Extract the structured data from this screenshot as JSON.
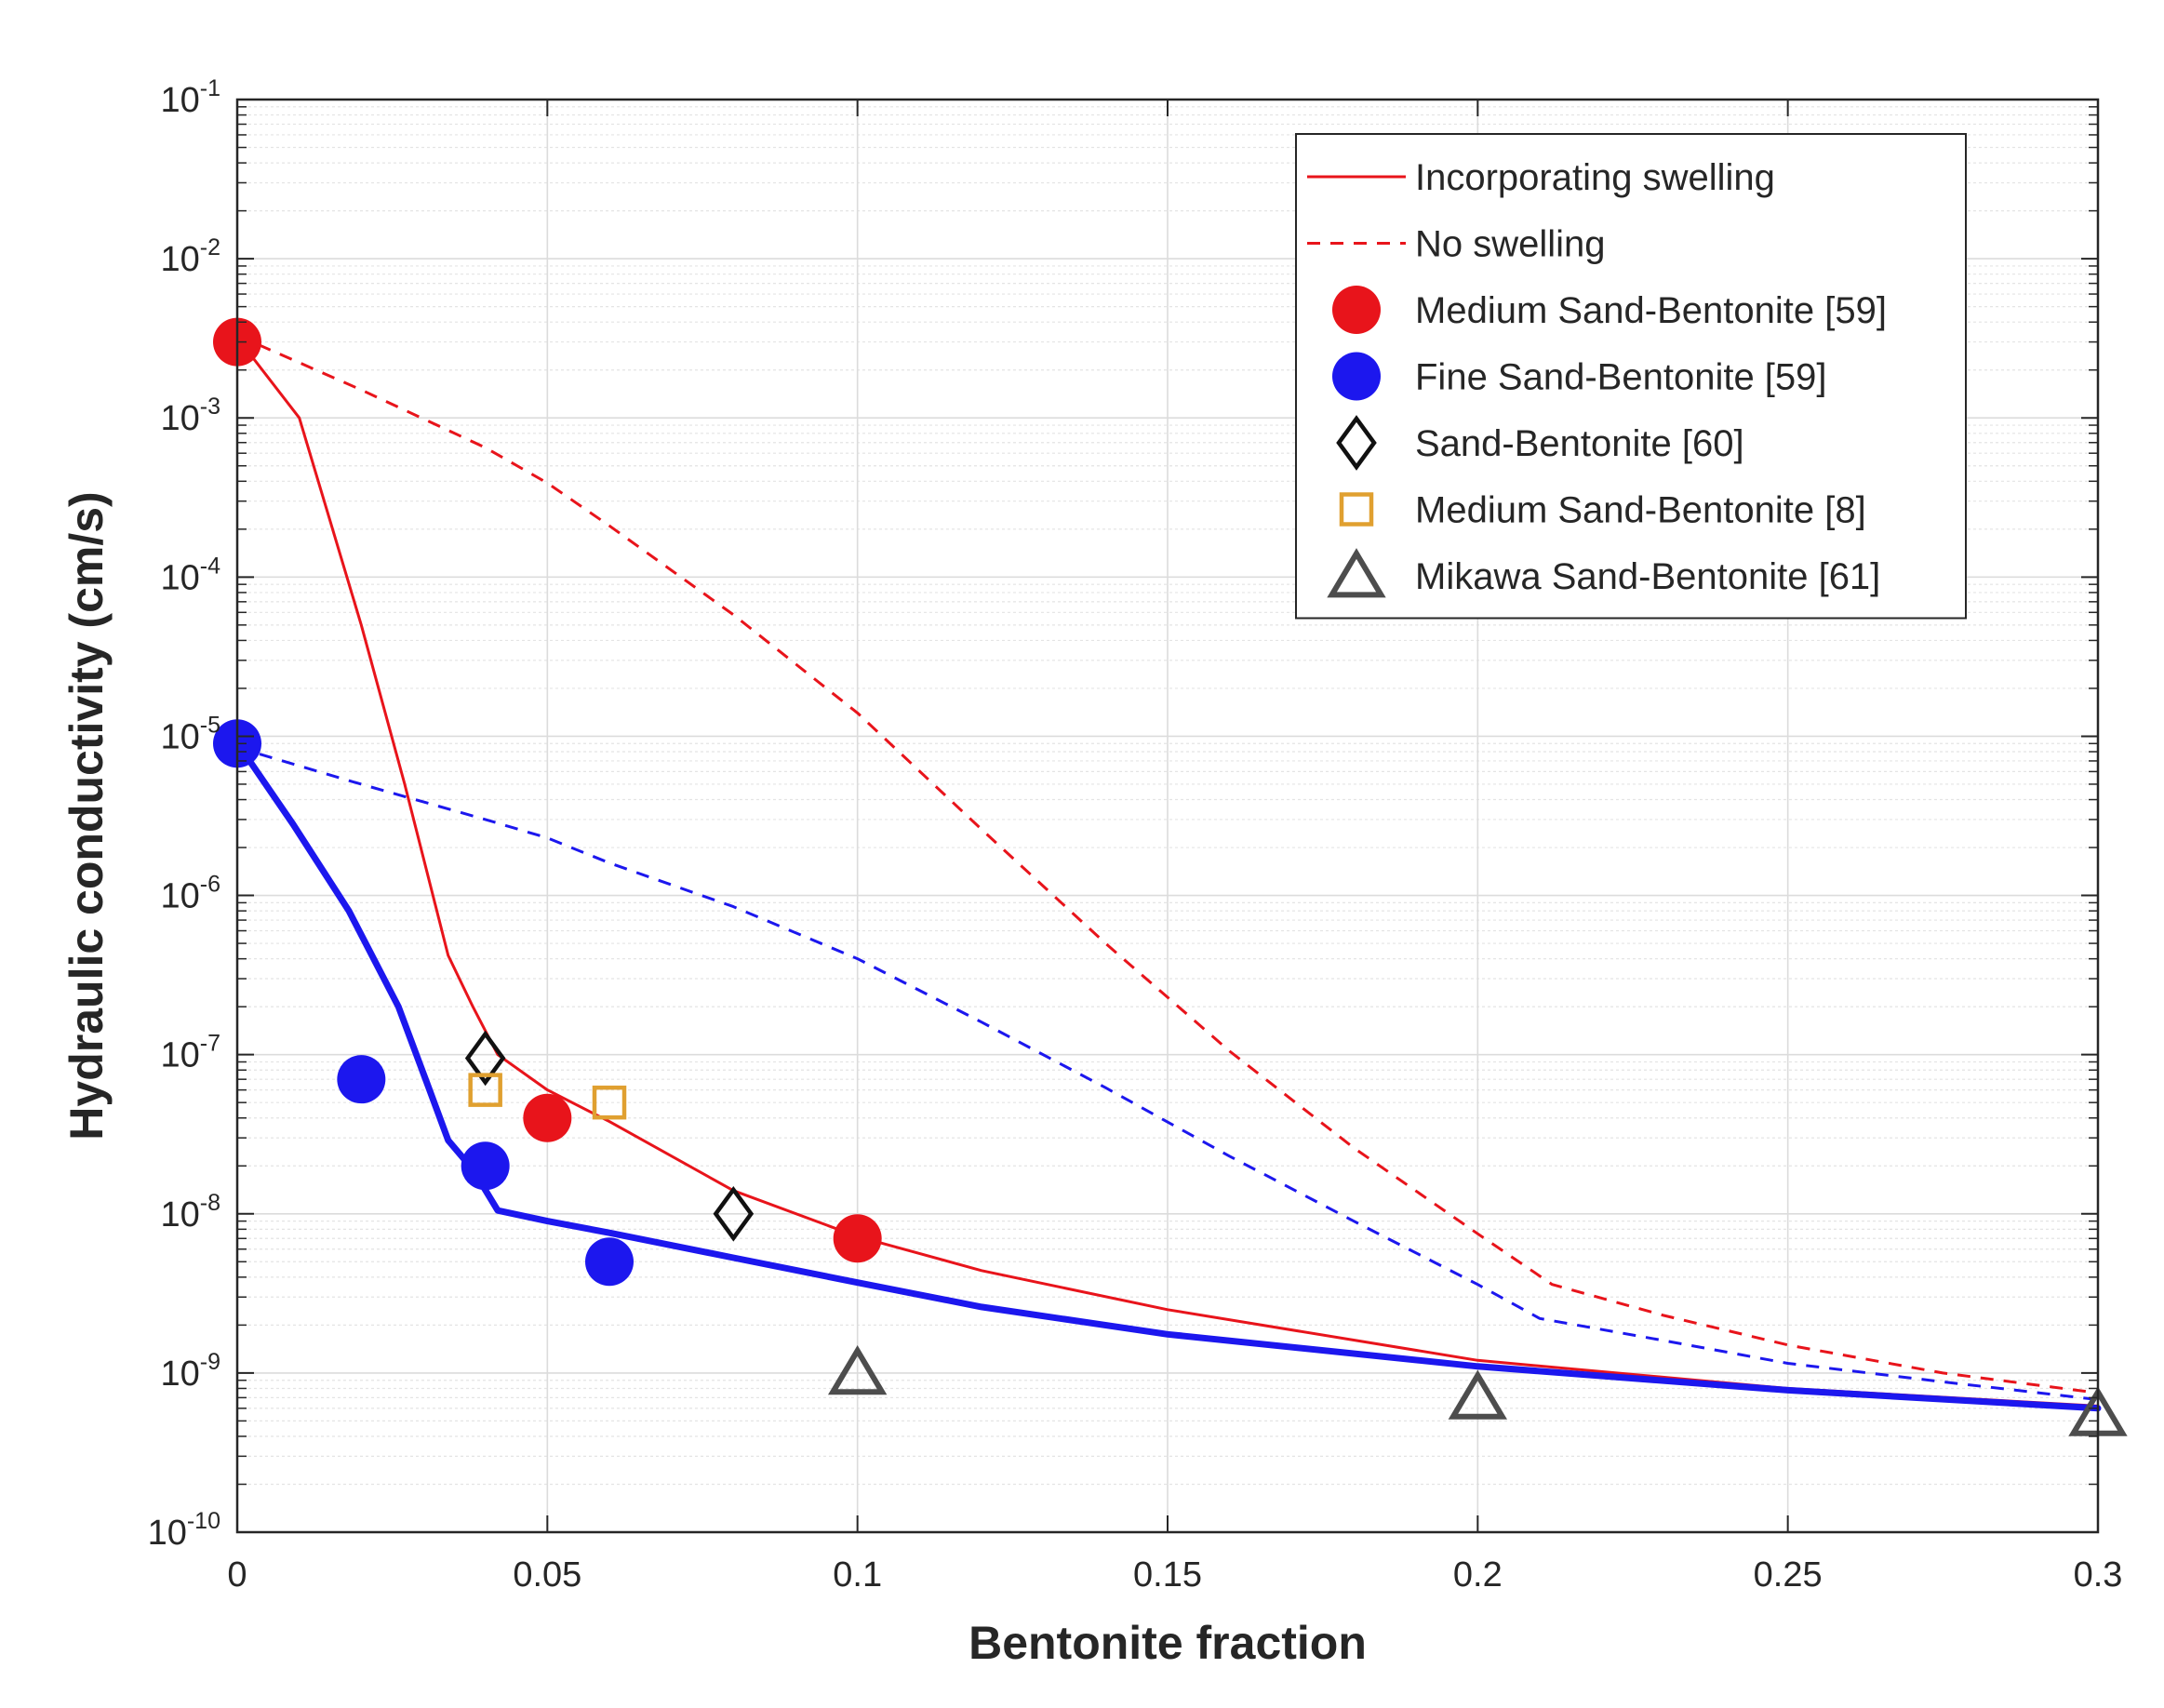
{
  "chart_data": {
    "type": "scatter",
    "title": "",
    "xlabel": "Bentonite fraction",
    "ylabel": "Hydraulic conductivity (cm/s)",
    "x_scale": "linear",
    "y_scale": "log",
    "xlim": [
      0,
      0.3
    ],
    "ylim": [
      1e-10,
      0.1
    ],
    "grid": true,
    "minor_grid": true,
    "legend_position": "top-right",
    "x_ticks": [
      {
        "value": 0,
        "label": "0"
      },
      {
        "value": 0.05,
        "label": "0.05"
      },
      {
        "value": 0.1,
        "label": "0.1"
      },
      {
        "value": 0.15,
        "label": "0.15"
      },
      {
        "value": 0.2,
        "label": "0.2"
      },
      {
        "value": 0.25,
        "label": "0.25"
      },
      {
        "value": 0.3,
        "label": "0.3"
      }
    ],
    "y_ticks": [
      {
        "exp": -10,
        "base": "10",
        "sup": "-10"
      },
      {
        "exp": -9,
        "base": "10",
        "sup": "-9"
      },
      {
        "exp": -8,
        "base": "10",
        "sup": "-8"
      },
      {
        "exp": -7,
        "base": "10",
        "sup": "-7"
      },
      {
        "exp": -6,
        "base": "10",
        "sup": "-6"
      },
      {
        "exp": -5,
        "base": "10",
        "sup": "-5"
      },
      {
        "exp": -4,
        "base": "10",
        "sup": "-4"
      },
      {
        "exp": -3,
        "base": "10",
        "sup": "-3"
      },
      {
        "exp": -2,
        "base": "10",
        "sup": "-2"
      },
      {
        "exp": -1,
        "base": "10",
        "sup": "-1"
      }
    ],
    "lines": [
      {
        "name": "medium-swelling",
        "color": "#e8141b",
        "style": "solid",
        "weight": "thin",
        "points": [
          [
            0,
            0.0032
          ],
          [
            0.01,
            0.001
          ],
          [
            0.02,
            5e-05
          ],
          [
            0.027,
            5e-06
          ],
          [
            0.034,
            4.2e-07
          ],
          [
            0.038,
            2e-07
          ],
          [
            0.042,
            1e-07
          ],
          [
            0.05,
            6e-08
          ],
          [
            0.06,
            3.8e-08
          ],
          [
            0.08,
            1.4e-08
          ],
          [
            0.1,
            7.2e-09
          ],
          [
            0.12,
            4.4e-09
          ],
          [
            0.15,
            2.5e-09
          ],
          [
            0.2,
            1.2e-09
          ],
          [
            0.25,
            8e-10
          ],
          [
            0.3,
            6.2e-10
          ]
        ]
      },
      {
        "name": "fine-swelling",
        "color": "#1c17ee",
        "style": "solid",
        "weight": "thick",
        "points": [
          [
            0,
            9e-06
          ],
          [
            0.002,
            7e-06
          ],
          [
            0.009,
            2.8e-06
          ],
          [
            0.018,
            8e-07
          ],
          [
            0.026,
            2e-07
          ],
          [
            0.031,
            6e-08
          ],
          [
            0.034,
            2.9e-08
          ],
          [
            0.038,
            1.9e-08
          ],
          [
            0.042,
            1.05e-08
          ],
          [
            0.05,
            9e-09
          ],
          [
            0.06,
            7.6e-09
          ],
          [
            0.08,
            5.3e-09
          ],
          [
            0.1,
            3.7e-09
          ],
          [
            0.12,
            2.6e-09
          ],
          [
            0.15,
            1.75e-09
          ],
          [
            0.2,
            1.1e-09
          ],
          [
            0.25,
            7.8e-10
          ],
          [
            0.3,
            6e-10
          ]
        ]
      },
      {
        "name": "medium-no-swelling",
        "color": "#e8141b",
        "style": "dashed",
        "weight": "thin",
        "points": [
          [
            0,
            0.0033
          ],
          [
            0.02,
            0.0015
          ],
          [
            0.04,
            0.00065
          ],
          [
            0.05,
            0.00039
          ],
          [
            0.06,
            0.00021
          ],
          [
            0.08,
            5.8e-05
          ],
          [
            0.1,
            1.4e-05
          ],
          [
            0.12,
            2.6e-06
          ],
          [
            0.14,
            5e-07
          ],
          [
            0.16,
            1.05e-07
          ],
          [
            0.18,
            2.6e-08
          ],
          [
            0.2,
            7.5e-09
          ],
          [
            0.212,
            3.6e-09
          ],
          [
            0.23,
            2.3e-09
          ],
          [
            0.25,
            1.5e-09
          ],
          [
            0.275,
            1e-09
          ],
          [
            0.3,
            7.5e-10
          ]
        ]
      },
      {
        "name": "fine-no-swelling",
        "color": "#1c17ee",
        "style": "dashed",
        "weight": "thin",
        "points": [
          [
            0,
            8.5e-06
          ],
          [
            0.02,
            5e-06
          ],
          [
            0.04,
            3e-06
          ],
          [
            0.05,
            2.3e-06
          ],
          [
            0.06,
            1.6e-06
          ],
          [
            0.08,
            8.5e-07
          ],
          [
            0.1,
            4e-07
          ],
          [
            0.12,
            1.6e-07
          ],
          [
            0.14,
            6.2e-08
          ],
          [
            0.16,
            2.3e-08
          ],
          [
            0.18,
            9e-09
          ],
          [
            0.2,
            3.6e-09
          ],
          [
            0.21,
            2.2e-09
          ],
          [
            0.23,
            1.6e-09
          ],
          [
            0.25,
            1.15e-09
          ],
          [
            0.275,
            8.8e-10
          ],
          [
            0.3,
            6.8e-10
          ]
        ]
      }
    ],
    "scatter": [
      {
        "name": "medium-59",
        "color": "#e8141b",
        "marker": "filled-circle",
        "points": [
          [
            0,
            0.003
          ],
          [
            0.05,
            4e-08
          ],
          [
            0.1,
            7e-09
          ]
        ]
      },
      {
        "name": "fine-59",
        "color": "#1c17ee",
        "marker": "filled-circle",
        "points": [
          [
            0,
            9e-06
          ],
          [
            0.02,
            7e-08
          ],
          [
            0.04,
            2e-08
          ],
          [
            0.06,
            5e-09
          ]
        ]
      },
      {
        "name": "sand-60",
        "color": "#111111",
        "marker": "diamond",
        "points": [
          [
            0.04,
            9.5e-08
          ],
          [
            0.08,
            1e-08
          ]
        ]
      },
      {
        "name": "medium-8",
        "color": "#e0a030",
        "marker": "square",
        "points": [
          [
            0.04,
            6e-08
          ],
          [
            0.06,
            5e-08
          ]
        ]
      },
      {
        "name": "mikawa-61",
        "color": "#4d4d4d",
        "marker": "triangle",
        "points": [
          [
            0.1,
            1e-09
          ],
          [
            0.2,
            7e-10
          ],
          [
            0.3,
            5.5e-10
          ]
        ]
      }
    ],
    "legend": [
      {
        "label": "Incorporating swelling",
        "kind": "line",
        "style": "solid",
        "color": "#e8141b"
      },
      {
        "label": "No swelling",
        "kind": "line",
        "style": "dashed",
        "color": "#e8141b"
      },
      {
        "label": "Medium Sand-Bentonite [59]",
        "kind": "marker",
        "marker": "filled-circle",
        "color": "#e8141b"
      },
      {
        "label": "Fine Sand-Bentonite [59]",
        "kind": "marker",
        "marker": "filled-circle",
        "color": "#1c17ee"
      },
      {
        "label": "Sand-Bentonite [60]",
        "kind": "marker",
        "marker": "diamond",
        "color": "#111111"
      },
      {
        "label": "Medium Sand-Bentonite [8]",
        "kind": "marker",
        "marker": "square",
        "color": "#e0a030"
      },
      {
        "label": "Mikawa Sand-Bentonite [61]",
        "kind": "marker",
        "marker": "triangle",
        "color": "#4d4d4d"
      }
    ]
  }
}
